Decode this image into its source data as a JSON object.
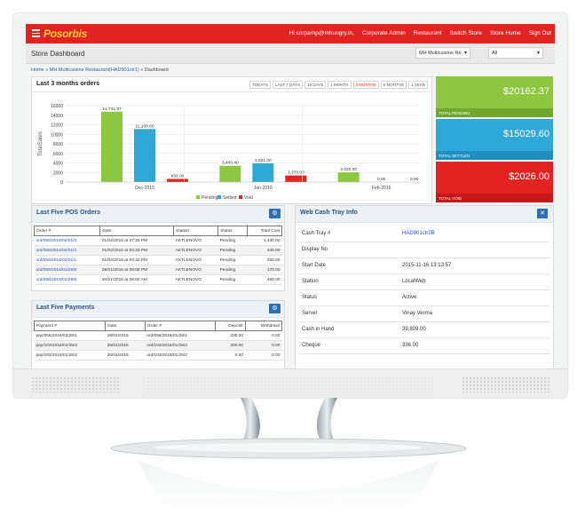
{
  "topbar": {
    "logo": "Posorbis",
    "user": "Hi corpemp@mhungry.in,",
    "nav": [
      "Corporate Admin",
      "Restaurant",
      "Switch Store",
      "Store Home",
      "Sign Out"
    ]
  },
  "header": {
    "title": "Store Dashboard",
    "store_select": "MH Multicuisine Re",
    "filter_select": "All"
  },
  "breadcrumb": {
    "home": "Home",
    "store": "MH Multicuisine Restaurant(HAD901ctr1)",
    "current": "Dashboard",
    "sep": "»"
  },
  "chart_panel": {
    "title": "Last 3 months orders",
    "ranges": [
      "TODAYS",
      "LAST 7 DAYS",
      "15 DAYS",
      "1 MONTH",
      "3 MONTHS",
      "6 MONTHS",
      "1 YEAR"
    ],
    "active_range": "3 MONTHS"
  },
  "chart_data": {
    "type": "bar",
    "categories": [
      "Dec-2015",
      "Jan-2016",
      "Feb-2016"
    ],
    "series": [
      {
        "name": "Pending",
        "color": "#8dc63f",
        "values": [
          14741.97,
          3400.4,
          2020.0
        ],
        "labels": [
          "14,741.97",
          "3,400.40",
          "2,020.00"
        ]
      },
      {
        "name": "Settled",
        "color": "#2fa8d8",
        "values": [
          11108.6,
          3921.0,
          0.0
        ],
        "labels": [
          "11,108.60",
          "3,921.00",
          "0.00"
        ]
      },
      {
        "name": "Void",
        "color": "#e32222",
        "values": [
          656.0,
          1370.0,
          0.0
        ],
        "labels": [
          "656.00",
          "1,370.00",
          "0.00"
        ]
      }
    ],
    "ylabel": "TotalSales",
    "ylim": [
      0,
      16000
    ],
    "yticks": [
      "0",
      "2000",
      "4000",
      "6000",
      "8000",
      "10000",
      "12000",
      "14000",
      "16000"
    ],
    "grid": true,
    "legend": "bottom"
  },
  "cards": [
    {
      "amount": "$20162.37",
      "label": "TOTAL PENDING",
      "color": "#8dc63f",
      "foot": "#6fa82c"
    },
    {
      "amount": "$15029.60",
      "label": "TOTAL SETTLED",
      "color": "#2fa8d8",
      "foot": "#1e8fbf"
    },
    {
      "amount": "$2026.00",
      "label": "TOTAL VOID",
      "color": "#e32222",
      "foot": "#c41717"
    }
  ],
  "pos_orders": {
    "title": "Last Five POS Orders",
    "columns": [
      "Order #",
      "Date",
      "Station",
      "Status",
      "Total Cost"
    ],
    "rows": [
      [
        "ord/056/2016/02/01/3",
        "01/02/2016 at 07:25 PM",
        "AKTLENOVO",
        "Pending",
        "1,430.00"
      ],
      [
        "ord/056/2016/02/01/2",
        "01/02/2016 at 03:33 PM",
        "AKTLENOVO",
        "Pending",
        "340.00"
      ],
      [
        "ord/056/2016/02/01/1",
        "01/02/2016 at 03:32 PM",
        "AKTLENOVO",
        "Pending",
        "250.00"
      ],
      [
        "ord/056/2016/01/29/9",
        "29/01/2016 at 09:08 PM",
        "AKTLENOVO",
        "Pending",
        "170.00"
      ],
      [
        "ord/056/2016/01/29/8",
        "30/01/2016 at 09:00 AM",
        "AKTLENOVO",
        "Pending",
        "450.00"
      ]
    ]
  },
  "payments": {
    "title": "Last Five Payments",
    "columns": [
      "Payment #",
      "Date",
      "Order #",
      "Deposit",
      "Withdrawl"
    ],
    "rows": [
      [
        "pay/056/2016/02/28/1",
        "28/01/2016",
        "ord/056/2016/01/28/1",
        "200.00",
        "0.00"
      ],
      [
        "pay/103/2016/01/25/3",
        "25/01/2016",
        "ord/103/2016/01/25/3",
        "200.00",
        "0.00"
      ],
      [
        "pay/103/2016/01/25/2",
        "25/01/2016",
        "ord/103/2016/01/25/2",
        "0.00",
        "0.00"
      ]
    ]
  },
  "cash_tray": {
    "title": "Web Cash Tray Info",
    "rows": [
      {
        "k": "Cash Tray #",
        "v": "HAD901ctr2B",
        "link": true
      },
      {
        "k": "Display No",
        "v": ""
      },
      {
        "k": "Start Date",
        "v": "2015-11-16 13:13:57"
      },
      {
        "k": "Station",
        "v": "LocalWeb"
      },
      {
        "k": "Status",
        "v": "Active"
      },
      {
        "k": "Server",
        "v": "Vinay Verma"
      },
      {
        "k": "Cash in Hand",
        "v": "39,809.00"
      },
      {
        "k": "Cheque",
        "v": "336.00"
      }
    ]
  }
}
